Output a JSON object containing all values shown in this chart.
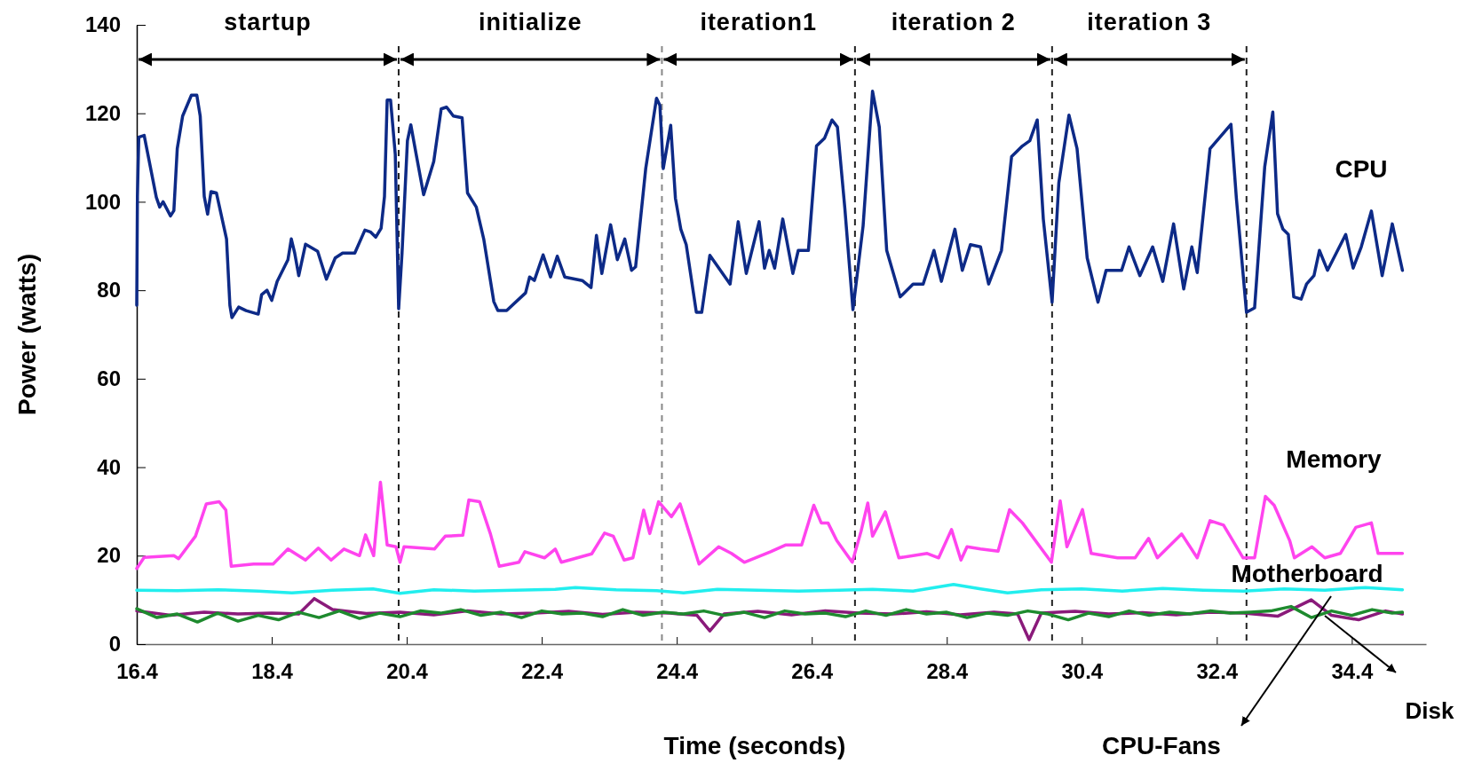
{
  "chart_data": {
    "type": "line",
    "xlabel": "Time (seconds)",
    "ylabel": "Power (watts)",
    "xlim": [
      16.4,
      35.5
    ],
    "ylim": [
      0,
      140
    ],
    "xticks": [
      16.4,
      18.4,
      20.4,
      22.4,
      24.4,
      26.4,
      28.4,
      30.4,
      32.4,
      34.4
    ],
    "yticks": [
      0,
      20,
      40,
      60,
      80,
      100,
      120,
      140
    ],
    "series": [
      {
        "name": "CPU",
        "color": "#0d2a87",
        "x": [
          16.4,
          16.41,
          16.43,
          16.51,
          16.69,
          16.74,
          16.79,
          16.9,
          16.95,
          17.0,
          17.08,
          17.21,
          17.29,
          17.34,
          17.4,
          17.45,
          17.5,
          17.58,
          17.73,
          17.78,
          17.81,
          17.91,
          18.02,
          18.2,
          18.25,
          18.33,
          18.4,
          18.48,
          18.64,
          18.69,
          18.74,
          18.8,
          18.9,
          19.08,
          19.21,
          19.34,
          19.45,
          19.63,
          19.78,
          19.86,
          19.94,
          20.02,
          20.07,
          20.11,
          20.16,
          20.23,
          20.28,
          20.33,
          20.41,
          20.46,
          20.54,
          20.65,
          20.8,
          20.91,
          20.99,
          21.09,
          21.22,
          21.3,
          21.43,
          21.54,
          21.69,
          21.75,
          21.88,
          22.16,
          22.22,
          22.29,
          22.42,
          22.53,
          22.63,
          22.74,
          23.0,
          23.13,
          23.21,
          23.29,
          23.42,
          23.52,
          23.63,
          23.73,
          23.79,
          23.94,
          24.1,
          24.15,
          24.2,
          24.31,
          24.38,
          24.46,
          24.54,
          24.69,
          24.77,
          24.89,
          25.19,
          25.31,
          25.43,
          25.62,
          25.7,
          25.77,
          25.85,
          25.97,
          26.12,
          26.2,
          26.35,
          26.47,
          26.59,
          26.7,
          26.78,
          26.89,
          27.01,
          27.16,
          27.3,
          27.4,
          27.51,
          27.71,
          27.9,
          28.05,
          28.21,
          28.32,
          28.52,
          28.63,
          28.75,
          28.9,
          29.02,
          29.21,
          29.36,
          29.52,
          29.63,
          29.74,
          29.83,
          29.96,
          30.06,
          30.21,
          30.33,
          30.48,
          30.64,
          30.76,
          30.99,
          31.1,
          31.26,
          31.45,
          31.6,
          31.76,
          31.91,
          32.03,
          32.11,
          32.3,
          32.61,
          32.69,
          32.84,
          32.96,
          33.11,
          33.23,
          33.3,
          33.38,
          33.46,
          33.54,
          33.65,
          33.73,
          33.84,
          33.92,
          34.04,
          34.31,
          34.42,
          34.54,
          34.69,
          34.85,
          35.0,
          35.15
        ],
        "values": [
          76.6,
          101.2,
          114.6,
          115,
          101,
          98.8,
          100,
          96.8,
          98,
          112,
          119.4,
          124.1,
          124.1,
          119.4,
          101.2,
          97.2,
          102.3,
          102,
          91.6,
          76.6,
          73.8,
          76.2,
          75.4,
          74.6,
          79,
          80,
          77.7,
          82,
          86.9,
          91.6,
          88.4,
          83.3,
          90.4,
          88.8,
          82.5,
          87.3,
          88.4,
          88.4,
          93.6,
          93.2,
          92,
          94,
          101.2,
          123,
          123,
          110.7,
          75.8,
          88.4,
          113.8,
          117.4,
          110.7,
          101.6,
          109.1,
          121,
          121.4,
          119.4,
          119,
          102,
          98.8,
          91.6,
          77.4,
          75.4,
          75.4,
          79.4,
          83,
          82.2,
          88,
          83,
          87.7,
          83,
          82.2,
          80.6,
          92.4,
          83.8,
          94.8,
          86.9,
          91.6,
          84.5,
          85.3,
          107.5,
          123.4,
          121.8,
          107.5,
          117.3,
          100.8,
          93.8,
          90.3,
          75,
          75,
          87.9,
          81.4,
          95.5,
          83.8,
          95.5,
          85,
          89,
          85,
          96.1,
          83.8,
          89,
          89,
          112.6,
          114.4,
          118.5,
          116.9,
          98.5,
          75.6,
          94.5,
          125,
          116.9,
          89,
          78.5,
          81.4,
          81.4,
          89,
          82,
          93.8,
          84.5,
          90.3,
          89.8,
          81.4,
          89,
          110.2,
          112.6,
          113.8,
          118.5,
          96.1,
          77.3,
          104.3,
          119.6,
          112,
          87.3,
          77.3,
          84.5,
          84.5,
          89.8,
          83.3,
          89.8,
          82,
          95,
          80.3,
          89.8,
          84,
          112,
          117.5,
          100.8,
          75,
          76,
          107.9,
          120.3,
          97.3,
          93.8,
          92.6,
          78.5,
          78,
          81.4,
          83.3,
          89,
          84.5,
          92.6,
          85,
          89.8,
          97.9,
          83.3,
          95,
          84.5
        ]
      },
      {
        "name": "Memory",
        "color": "#ff44ee",
        "x": [
          16.4,
          16.51,
          16.95,
          17.02,
          17.27,
          17.43,
          17.62,
          17.72,
          17.8,
          18.13,
          18.42,
          18.64,
          18.9,
          19.09,
          19.28,
          19.47,
          19.7,
          19.79,
          19.91,
          20.01,
          20.11,
          20.24,
          20.3,
          20.36,
          20.81,
          20.97,
          21.23,
          21.32,
          21.48,
          21.64,
          21.77,
          22.06,
          22.15,
          22.44,
          22.6,
          22.69,
          23.14,
          23.33,
          23.46,
          23.62,
          23.75,
          23.91,
          24.0,
          24.13,
          24.32,
          24.45,
          24.73,
          25.02,
          25.21,
          25.4,
          25.79,
          26.01,
          26.25,
          26.43,
          26.54,
          26.64,
          26.77,
          27.0,
          27.13,
          27.23,
          27.3,
          27.49,
          27.69,
          28.11,
          28.28,
          28.47,
          28.61,
          28.7,
          28.9,
          29.16,
          29.33,
          29.52,
          29.95,
          30.08,
          30.18,
          30.41,
          30.54,
          30.93,
          31.19,
          31.39,
          31.52,
          31.88,
          32.11,
          32.3,
          32.5,
          32.79,
          32.96,
          33.12,
          33.25,
          33.48,
          33.55,
          33.81,
          34.0,
          34.23,
          34.46,
          34.69,
          34.79,
          35.15
        ],
        "values": [
          17.1,
          19.6,
          20,
          19.3,
          24.4,
          31.7,
          32.2,
          30.3,
          17.6,
          18.1,
          18.1,
          21.5,
          19,
          21.7,
          19,
          21.5,
          20,
          24.7,
          20,
          36.6,
          22.4,
          22,
          18.5,
          22,
          21.5,
          24.4,
          24.6,
          32.6,
          32.2,
          24.9,
          17.6,
          18.5,
          20.9,
          19.5,
          21.5,
          18.5,
          20.4,
          25.1,
          24.4,
          19,
          19.5,
          30.3,
          25,
          32.2,
          28.8,
          31.7,
          18.1,
          22,
          20.5,
          18.5,
          20.9,
          22.4,
          22.4,
          31.4,
          27.4,
          27.4,
          23.4,
          18.5,
          25.5,
          31.9,
          24.4,
          29.9,
          19.5,
          20.5,
          19.5,
          25.9,
          19,
          22,
          21.5,
          21,
          30.4,
          27.4,
          18.5,
          32.4,
          22,
          30.4,
          20.5,
          19.5,
          19.5,
          23.9,
          19.5,
          24.9,
          19.5,
          27.9,
          26.9,
          19.5,
          19.5,
          33.4,
          31.4,
          23.4,
          19.5,
          22,
          19.5,
          20.5,
          26.4,
          27.4,
          20.5,
          20.5
        ]
      },
      {
        "name": "Motherboard",
        "color": "#22eeee",
        "x": [
          16.4,
          17.0,
          17.6,
          18.2,
          18.7,
          19.3,
          19.9,
          20.3,
          20.8,
          21.4,
          22.0,
          22.6,
          22.9,
          23.5,
          24.1,
          24.5,
          25.0,
          25.6,
          26.2,
          26.8,
          27.3,
          27.9,
          28.5,
          28.9,
          29.3,
          29.8,
          30.4,
          31.0,
          31.6,
          32.2,
          32.8,
          33.4,
          34.0,
          34.6,
          35.15
        ],
        "values": [
          12.2,
          12.1,
          12.3,
          12.0,
          11.6,
          12.2,
          12.5,
          11.5,
          12.3,
          12.0,
          12.2,
          12.4,
          12.8,
          12.3,
          12.1,
          11.6,
          12.4,
          12.2,
          12.0,
          12.2,
          12.4,
          12.0,
          13.5,
          12.5,
          11.6,
          12.3,
          12.5,
          12.0,
          12.6,
          12.2,
          12.0,
          12.5,
          12.2,
          12.8,
          12.3
        ]
      },
      {
        "name": "CPU-Fans",
        "color": "#8a1a7a",
        "x": [
          16.4,
          16.9,
          17.4,
          17.9,
          18.4,
          18.8,
          19.03,
          19.3,
          19.8,
          20.3,
          20.8,
          21.3,
          21.8,
          22.3,
          22.8,
          23.3,
          23.8,
          24.3,
          24.7,
          24.89,
          25.1,
          25.6,
          26.1,
          26.6,
          27.1,
          27.6,
          28.1,
          28.6,
          29.1,
          29.45,
          29.62,
          29.8,
          30.3,
          30.8,
          31.3,
          31.8,
          32.3,
          32.8,
          33.3,
          33.8,
          34.1,
          34.5,
          34.9,
          35.15
        ],
        "values": [
          7.5,
          6.5,
          7.2,
          6.8,
          7.0,
          6.8,
          10.3,
          7.8,
          6.9,
          7.2,
          6.6,
          7.5,
          6.8,
          7.0,
          7.4,
          6.7,
          7.2,
          7.0,
          6.5,
          3.0,
          6.8,
          7.4,
          6.6,
          7.5,
          7.0,
          6.8,
          7.3,
          6.6,
          7.2,
          6.8,
          1.0,
          7.0,
          7.4,
          6.8,
          7.1,
          6.6,
          7.2,
          7.0,
          6.3,
          10.0,
          6.5,
          5.5,
          7.5,
          6.8
        ]
      },
      {
        "name": "Disk",
        "color": "#1e8a2e",
        "x": [
          16.4,
          16.7,
          17.0,
          17.3,
          17.6,
          17.9,
          18.2,
          18.5,
          18.8,
          19.1,
          19.4,
          19.7,
          20.0,
          20.3,
          20.6,
          20.9,
          21.2,
          21.5,
          21.8,
          22.1,
          22.4,
          22.7,
          23.0,
          23.3,
          23.6,
          23.9,
          24.2,
          24.5,
          24.8,
          25.1,
          25.4,
          25.7,
          26.0,
          26.3,
          26.6,
          26.9,
          27.2,
          27.5,
          27.8,
          28.1,
          28.4,
          28.7,
          29.0,
          29.3,
          29.6,
          29.9,
          30.2,
          30.5,
          30.8,
          31.1,
          31.4,
          31.7,
          32.0,
          32.3,
          32.6,
          32.9,
          33.2,
          33.5,
          33.8,
          34.1,
          34.4,
          34.7,
          35.0,
          35.15
        ],
        "values": [
          8.0,
          6.0,
          6.8,
          5.0,
          7.0,
          5.2,
          6.5,
          5.5,
          7.2,
          6.0,
          7.5,
          5.8,
          7.0,
          6.2,
          7.5,
          7.0,
          7.8,
          6.5,
          7.2,
          6.0,
          7.5,
          6.8,
          7.0,
          6.2,
          7.8,
          6.5,
          7.2,
          6.8,
          7.5,
          6.5,
          7.2,
          6.0,
          7.5,
          6.8,
          7.0,
          6.2,
          7.5,
          6.5,
          7.8,
          6.8,
          7.2,
          6.0,
          7.0,
          6.5,
          7.5,
          6.8,
          5.5,
          7.0,
          6.2,
          7.5,
          6.5,
          7.2,
          6.8,
          7.5,
          7.0,
          7.2,
          7.5,
          8.5,
          6.0,
          7.5,
          6.5,
          7.8,
          7.0,
          7.2
        ]
      }
    ],
    "ref_lines": [
      {
        "axis": "x",
        "value": 20.28,
        "color": "#222222",
        "line_style": "dashed"
      },
      {
        "axis": "x",
        "value": 24.18,
        "color": "#888888",
        "line_style": "dashed"
      },
      {
        "axis": "x",
        "value": 27.04,
        "color": "#222222",
        "line_style": "dashed"
      },
      {
        "axis": "x",
        "value": 29.96,
        "color": "#222222",
        "line_style": "dashed"
      },
      {
        "axis": "x",
        "value": 32.84,
        "color": "#222222",
        "line_style": "dashed"
      }
    ],
    "annotations": [
      "startup",
      "initialize",
      "iteration1",
      "iteration 2",
      "iteration 3"
    ]
  }
}
